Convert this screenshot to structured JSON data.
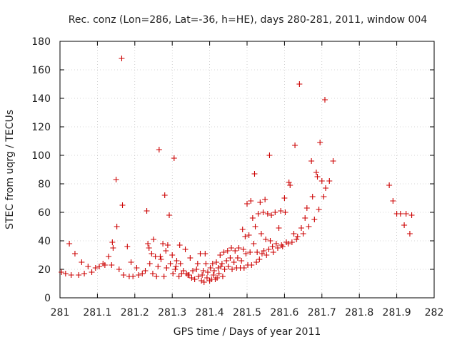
{
  "chart_data": {
    "type": "scatter",
    "title": "Rec. conz (Lon=286, Lat=-36, h=HE), days 280-281, 2011, window 004",
    "xlabel": "GPS time / Days of year 2011",
    "ylabel": "STEC from uqrg / TECUs",
    "xlim": [
      281,
      282
    ],
    "ylim": [
      0,
      180
    ],
    "xticks": [
      281,
      281.1,
      281.2,
      281.3,
      281.4,
      281.5,
      281.6,
      281.7,
      281.8,
      281.9,
      282
    ],
    "xtick_labels": [
      "281",
      "281.1",
      "281.2",
      "281.3",
      "281.4",
      "281.5",
      "281.6",
      "281.7",
      "281.8",
      "281.9",
      "282"
    ],
    "yticks": [
      0,
      20,
      40,
      60,
      80,
      100,
      120,
      140,
      160,
      180
    ],
    "ytick_labels": [
      "0",
      "20",
      "40",
      "60",
      "80",
      "100",
      "120",
      "140",
      "160",
      "180"
    ],
    "grid": true,
    "marker": "+",
    "color": "#cc0000",
    "series": [
      {
        "name": "STEC",
        "points": [
          [
            281.004,
            18
          ],
          [
            281.015,
            17
          ],
          [
            281.025,
            38
          ],
          [
            281.03,
            16
          ],
          [
            281.04,
            31
          ],
          [
            281.05,
            16
          ],
          [
            281.058,
            25
          ],
          [
            281.065,
            17
          ],
          [
            281.075,
            22
          ],
          [
            281.085,
            18
          ],
          [
            281.095,
            21
          ],
          [
            281.105,
            22
          ],
          [
            281.115,
            24
          ],
          [
            281.12,
            23
          ],
          [
            281.13,
            29
          ],
          [
            281.138,
            23
          ],
          [
            281.14,
            39
          ],
          [
            281.142,
            35
          ],
          [
            281.15,
            83
          ],
          [
            281.152,
            50
          ],
          [
            281.158,
            20
          ],
          [
            281.165,
            168
          ],
          [
            281.167,
            65
          ],
          [
            281.17,
            16
          ],
          [
            281.18,
            36
          ],
          [
            281.185,
            15
          ],
          [
            281.19,
            25
          ],
          [
            281.195,
            15
          ],
          [
            281.205,
            21
          ],
          [
            281.21,
            16
          ],
          [
            281.22,
            17
          ],
          [
            281.228,
            19
          ],
          [
            281.232,
            61
          ],
          [
            281.235,
            38
          ],
          [
            281.238,
            35
          ],
          [
            281.24,
            24
          ],
          [
            281.245,
            31
          ],
          [
            281.248,
            17
          ],
          [
            281.25,
            41
          ],
          [
            281.255,
            29
          ],
          [
            281.258,
            15
          ],
          [
            281.262,
            22
          ],
          [
            281.265,
            104
          ],
          [
            281.268,
            29
          ],
          [
            281.27,
            27
          ],
          [
            281.275,
            38
          ],
          [
            281.278,
            15
          ],
          [
            281.28,
            72
          ],
          [
            281.283,
            33
          ],
          [
            281.285,
            21
          ],
          [
            281.288,
            37
          ],
          [
            281.292,
            58
          ],
          [
            281.295,
            24
          ],
          [
            281.3,
            30
          ],
          [
            281.302,
            17
          ],
          [
            281.305,
            98
          ],
          [
            281.308,
            20
          ],
          [
            281.31,
            22
          ],
          [
            281.312,
            26
          ],
          [
            281.318,
            15
          ],
          [
            281.32,
            37
          ],
          [
            281.322,
            24
          ],
          [
            281.325,
            17
          ],
          [
            281.33,
            19
          ],
          [
            281.335,
            34
          ],
          [
            281.338,
            17
          ],
          [
            281.342,
            16
          ],
          [
            281.345,
            16
          ],
          [
            281.348,
            28
          ],
          [
            281.352,
            14
          ],
          [
            281.355,
            19
          ],
          [
            281.36,
            13
          ],
          [
            281.365,
            20
          ],
          [
            281.368,
            24
          ],
          [
            281.37,
            15
          ],
          [
            281.375,
            31
          ],
          [
            281.378,
            12
          ],
          [
            281.38,
            16
          ],
          [
            281.383,
            19
          ],
          [
            281.385,
            11
          ],
          [
            281.388,
            31
          ],
          [
            281.39,
            24
          ],
          [
            281.393,
            14
          ],
          [
            281.395,
            18
          ],
          [
            281.4,
            12
          ],
          [
            281.402,
            21
          ],
          [
            281.405,
            13
          ],
          [
            281.408,
            24
          ],
          [
            281.41,
            16
          ],
          [
            281.412,
            19
          ],
          [
            281.415,
            13
          ],
          [
            281.418,
            25
          ],
          [
            281.42,
            14
          ],
          [
            281.423,
            21
          ],
          [
            281.425,
            17
          ],
          [
            281.428,
            30
          ],
          [
            281.43,
            22
          ],
          [
            281.433,
            24
          ],
          [
            281.435,
            15
          ],
          [
            281.438,
            32
          ],
          [
            281.44,
            20
          ],
          [
            281.445,
            26
          ],
          [
            281.448,
            33
          ],
          [
            281.45,
            22
          ],
          [
            281.455,
            28
          ],
          [
            281.458,
            35
          ],
          [
            281.46,
            20
          ],
          [
            281.465,
            25
          ],
          [
            281.468,
            33
          ],
          [
            281.472,
            21
          ],
          [
            281.475,
            28
          ],
          [
            281.478,
            35
          ],
          [
            281.482,
            21
          ],
          [
            281.485,
            26
          ],
          [
            281.488,
            48
          ],
          [
            281.49,
            34
          ],
          [
            281.492,
            21
          ],
          [
            281.495,
            43
          ],
          [
            281.497,
            31
          ],
          [
            281.5,
            66
          ],
          [
            281.502,
            23
          ],
          [
            281.505,
            44
          ],
          [
            281.508,
            32
          ],
          [
            281.51,
            68
          ],
          [
            281.512,
            23
          ],
          [
            281.515,
            56
          ],
          [
            281.518,
            38
          ],
          [
            281.52,
            87
          ],
          [
            281.522,
            50
          ],
          [
            281.525,
            25
          ],
          [
            281.527,
            32
          ],
          [
            281.53,
            59
          ],
          [
            281.533,
            27
          ],
          [
            281.535,
            67
          ],
          [
            281.538,
            45
          ],
          [
            281.54,
            31
          ],
          [
            281.543,
            60
          ],
          [
            281.545,
            33
          ],
          [
            281.548,
            69
          ],
          [
            281.55,
            41
          ],
          [
            281.552,
            30
          ],
          [
            281.555,
            59
          ],
          [
            281.558,
            34
          ],
          [
            281.56,
            100
          ],
          [
            281.562,
            40
          ],
          [
            281.565,
            58
          ],
          [
            281.568,
            36
          ],
          [
            281.57,
            32
          ],
          [
            281.575,
            60
          ],
          [
            281.578,
            38
          ],
          [
            281.582,
            35
          ],
          [
            281.585,
            49
          ],
          [
            281.59,
            61
          ],
          [
            281.592,
            37
          ],
          [
            281.595,
            36
          ],
          [
            281.6,
            70
          ],
          [
            281.602,
            60
          ],
          [
            281.605,
            39
          ],
          [
            281.61,
            38
          ],
          [
            281.612,
            81
          ],
          [
            281.615,
            79
          ],
          [
            281.62,
            39
          ],
          [
            281.625,
            45
          ],
          [
            281.628,
            107
          ],
          [
            281.632,
            41
          ],
          [
            281.635,
            43
          ],
          [
            281.64,
            150
          ],
          [
            281.645,
            49
          ],
          [
            281.65,
            45
          ],
          [
            281.655,
            56
          ],
          [
            281.66,
            63
          ],
          [
            281.665,
            50
          ],
          [
            281.672,
            96
          ],
          [
            281.675,
            71
          ],
          [
            281.68,
            55
          ],
          [
            281.685,
            88
          ],
          [
            281.688,
            85
          ],
          [
            281.692,
            62
          ],
          [
            281.695,
            109
          ],
          [
            281.7,
            82
          ],
          [
            281.705,
            71
          ],
          [
            281.708,
            139
          ],
          [
            281.71,
            77
          ],
          [
            281.72,
            82
          ],
          [
            281.73,
            96
          ],
          [
            281.88,
            79
          ],
          [
            281.89,
            68
          ],
          [
            281.9,
            59
          ],
          [
            281.91,
            59
          ],
          [
            281.92,
            51
          ],
          [
            281.925,
            59
          ],
          [
            281.935,
            45
          ],
          [
            281.94,
            58
          ]
        ]
      }
    ]
  }
}
